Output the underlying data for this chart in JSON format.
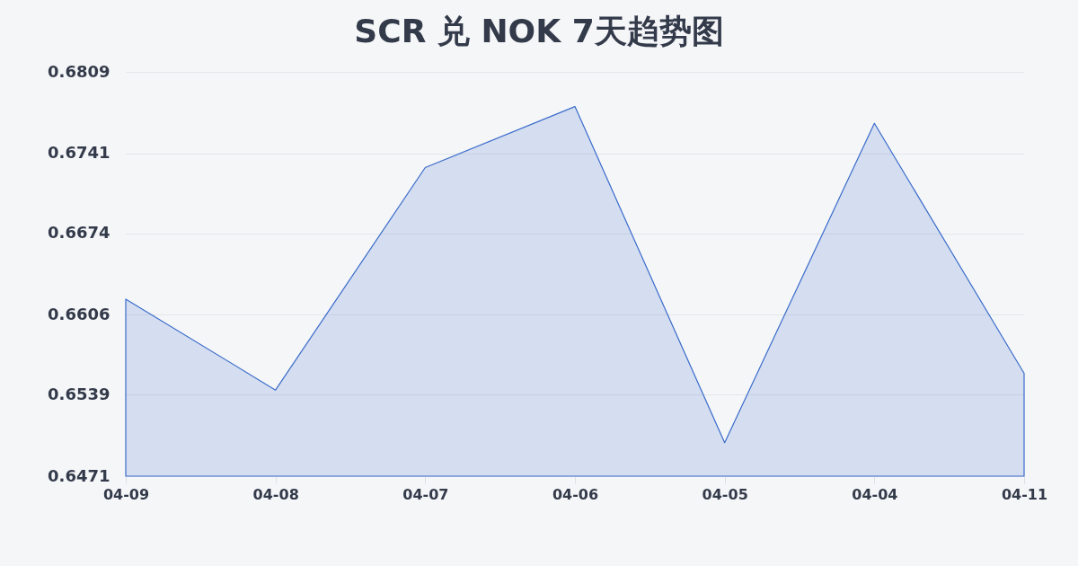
{
  "chart_data": {
    "type": "area",
    "title": "SCR 兑 NOK 7天趋势图",
    "categories": [
      "04-09",
      "04-08",
      "04-07",
      "04-06",
      "04-05",
      "04-04",
      "04-11"
    ],
    "values": [
      0.6619,
      0.6543,
      0.6729,
      0.678,
      0.6499,
      0.6766,
      0.6557
    ],
    "color": "#3a6bcb",
    "ylim": [
      0.6471,
      0.6809
    ],
    "yticks": [
      0.6471,
      0.6539,
      0.6606,
      0.6674,
      0.6741,
      0.6809
    ],
    "grid": "y"
  }
}
